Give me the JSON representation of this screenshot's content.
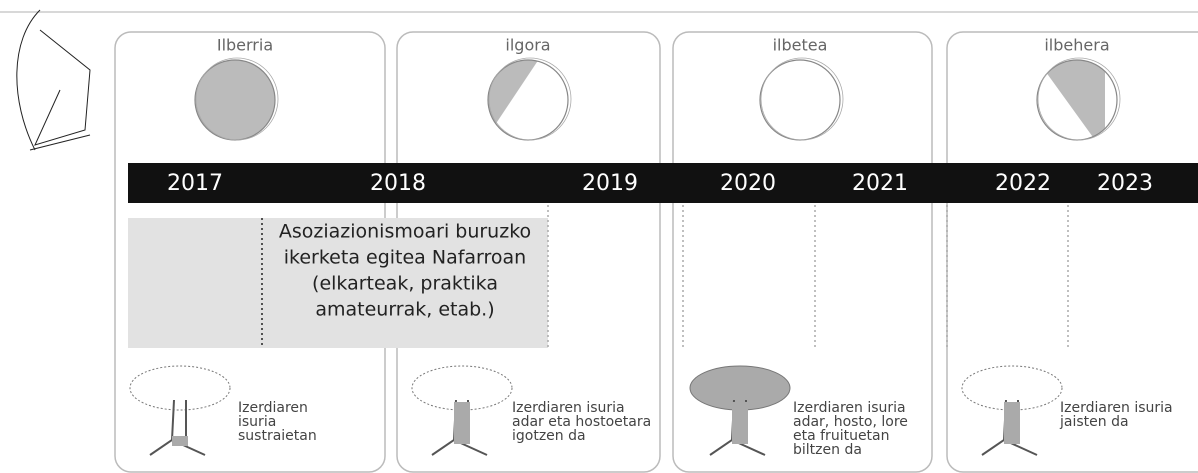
{
  "phases": [
    {
      "title": "Ilberria",
      "caption": [
        "Izerdiaren",
        "isuria",
        "sustraietan"
      ]
    },
    {
      "title": "ilgora",
      "caption": [
        "Izerdiaren isuria",
        "adar eta hostoetara",
        "igotzen da"
      ]
    },
    {
      "title": "ilbetea",
      "caption": [
        "Izerdiaren isuria",
        "adar, hosto, lore",
        "eta fruituetan",
        "biltzen da"
      ]
    },
    {
      "title": "ilbehera",
      "caption": [
        "Izerdiaren isuria",
        "jaisten da"
      ]
    }
  ],
  "timeline": {
    "years": [
      "2017",
      "2018",
      "2019",
      "2020",
      "2021",
      "2022",
      "2023"
    ]
  },
  "activity": {
    "lines": [
      "Asoziazionismoari buruzko",
      "ikerketa egitea Nafarroan",
      "(elkarteak, praktika",
      "amateurrak, etab.)"
    ]
  }
}
